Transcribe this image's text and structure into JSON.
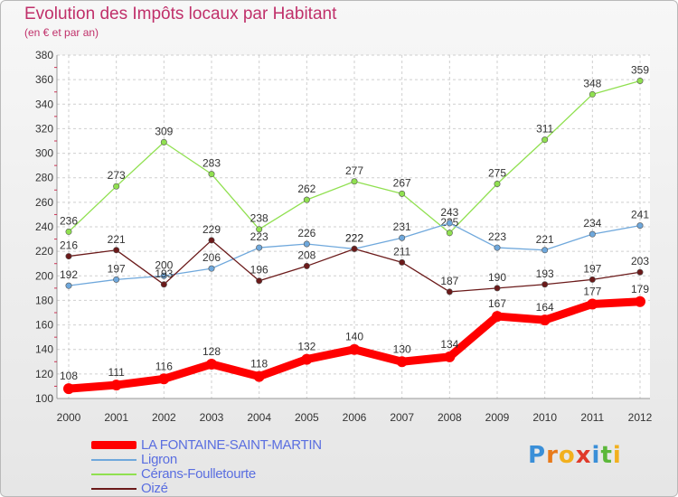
{
  "chart_data": {
    "type": "line",
    "title": "Evolution des Impôts locaux par Habitant",
    "subtitle": "(en € et par an)",
    "x": [
      "2000",
      "2001",
      "2002",
      "2003",
      "2004",
      "2005",
      "2006",
      "2007",
      "2008",
      "2009",
      "2010",
      "2011",
      "2012"
    ],
    "ylim": [
      100,
      380
    ],
    "yticks": [
      100,
      120,
      140,
      160,
      180,
      200,
      220,
      240,
      260,
      280,
      300,
      320,
      340,
      360,
      380
    ],
    "grid": true,
    "legend_placement": "bottom-left",
    "series": [
      {
        "name": "LA FONTAINE-SAINT-MARTIN",
        "color": "#ff0000",
        "values": [
          108,
          111,
          116,
          128,
          118,
          132,
          140,
          130,
          134,
          167,
          164,
          177,
          179
        ]
      },
      {
        "name": "Ligron",
        "color": "#6fa8dc",
        "values": [
          192,
          197,
          200,
          206,
          223,
          226,
          222,
          231,
          243,
          223,
          221,
          234,
          241
        ]
      },
      {
        "name": "Cérans-Foulletourte",
        "color": "#90e050",
        "values": [
          236,
          273,
          309,
          283,
          238,
          262,
          277,
          267,
          235,
          275,
          311,
          348,
          359
        ]
      },
      {
        "name": "Oizé",
        "color": "#6b1a1a",
        "values": [
          216,
          221,
          193,
          229,
          196,
          208,
          222,
          211,
          187,
          190,
          193,
          197,
          203
        ]
      }
    ]
  },
  "logo": {
    "text": "Proxiti",
    "letters": [
      "P",
      "r",
      "o",
      "x",
      "i",
      "t",
      "i"
    ]
  }
}
